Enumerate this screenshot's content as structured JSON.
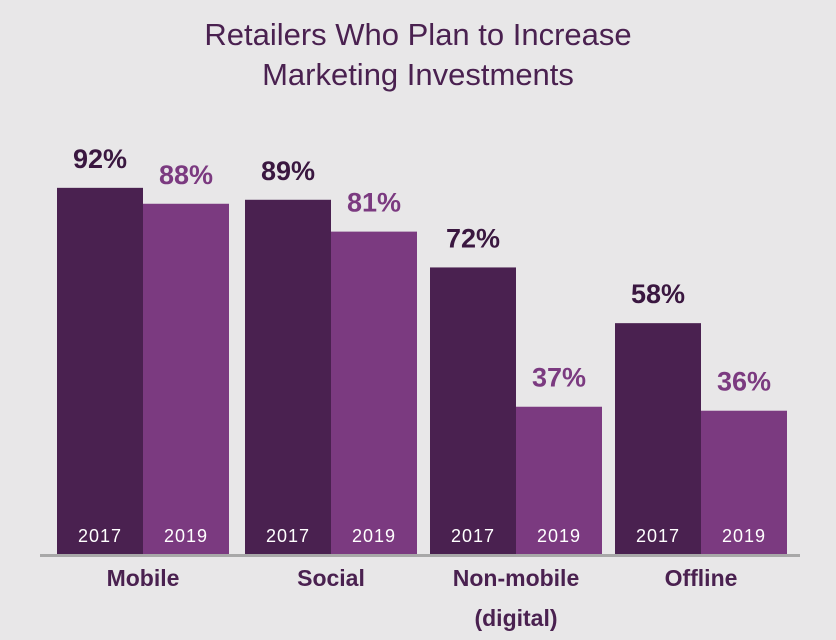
{
  "chart_data": {
    "type": "bar",
    "title_lines": [
      "Retailers Who Plan to Increase",
      "Marketing Investments"
    ],
    "categories": [
      "Mobile",
      "Social",
      "Non-mobile (digital)",
      "Offline"
    ],
    "category_label_lines": [
      [
        "Mobile"
      ],
      [
        "Social"
      ],
      [
        "Non-mobile",
        "(digital)"
      ],
      [
        "Offline"
      ]
    ],
    "series": [
      {
        "name": "2017",
        "values": [
          92,
          89,
          72,
          58
        ],
        "labels": [
          "92%",
          "89%",
          "72%",
          "58%"
        ],
        "color": "#4a2150"
      },
      {
        "name": "2019",
        "values": [
          88,
          81,
          37,
          36
        ],
        "labels": [
          "88%",
          "81%",
          "37%",
          "36%"
        ],
        "color": "#7b3a80"
      }
    ],
    "value_label_colors": [
      "#3a1740",
      "#7b3a80"
    ],
    "bar_text_color": "#ffffff",
    "category_color": "#4a2150",
    "axis_color": "#a8a8a8",
    "ylim": [
      0,
      100
    ],
    "grid": false
  }
}
